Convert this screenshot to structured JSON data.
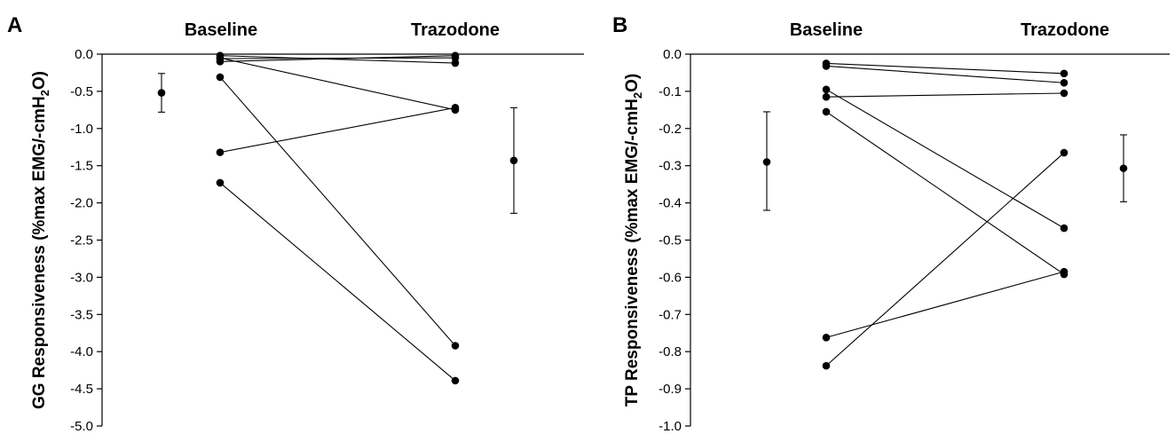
{
  "chart_data": [
    {
      "type": "scatter",
      "panel_label": "A",
      "group_labels": [
        "Baseline",
        "Trazodone"
      ],
      "ylabel": {
        "main": "GG Responsiveness (%max EMG/-cmH",
        "sub": "2",
        "end": "O)"
      },
      "ylim": [
        -5.0,
        0.0
      ],
      "yticks": [
        0.0,
        -0.5,
        -1.0,
        -1.5,
        -2.0,
        -2.5,
        -3.0,
        -3.5,
        -4.0,
        -4.5,
        -5.0
      ],
      "ytick_labels": [
        "0.0",
        "-0.5",
        "-1.0",
        "-1.5",
        "-2.0",
        "-2.5",
        "-3.0",
        "-3.5",
        "-4.0",
        "-4.5",
        "-5.0"
      ],
      "paired_values": [
        {
          "baseline": -0.02,
          "trazodone": -0.12
        },
        {
          "baseline": -0.06,
          "trazodone": -0.05
        },
        {
          "baseline": -0.1,
          "trazodone": -0.02
        },
        {
          "baseline": -0.31,
          "trazodone": -3.92
        },
        {
          "baseline": -1.32,
          "trazodone": -0.72
        },
        {
          "baseline": -1.73,
          "trazodone": -4.39
        },
        {
          "baseline": -0.05,
          "trazodone": -0.75
        }
      ],
      "summary": [
        {
          "group": "Baseline",
          "mean": -0.52,
          "error_low": -0.78,
          "error_high": -0.26
        },
        {
          "group": "Trazodone",
          "mean": -1.43,
          "error_low": -2.14,
          "error_high": -0.72
        }
      ]
    },
    {
      "type": "scatter",
      "panel_label": "B",
      "group_labels": [
        "Baseline",
        "Trazodone"
      ],
      "ylabel": {
        "main": "TP Responsiveness (%max EMG/-cmH",
        "sub": "2",
        "end": "O)"
      },
      "ylim": [
        -1.0,
        0.0
      ],
      "yticks": [
        0.0,
        -0.1,
        -0.2,
        -0.3,
        -0.4,
        -0.5,
        -0.6,
        -0.7,
        -0.8,
        -0.9,
        -1.0
      ],
      "ytick_labels": [
        "0.0",
        "-0.1",
        "-0.2",
        "-0.3",
        "-0.4",
        "-0.5",
        "-0.6",
        "-0.7",
        "-0.8",
        "-0.9",
        "-1.0"
      ],
      "paired_values": [
        {
          "baseline": -0.025,
          "trazodone": -0.052
        },
        {
          "baseline": -0.032,
          "trazodone": -0.077
        },
        {
          "baseline": -0.115,
          "trazodone": -0.105
        },
        {
          "baseline": -0.095,
          "trazodone": -0.468
        },
        {
          "baseline": -0.155,
          "trazodone": -0.592
        },
        {
          "baseline": -0.762,
          "trazodone": -0.585
        },
        {
          "baseline": -0.838,
          "trazodone": -0.265
        }
      ],
      "summary": [
        {
          "group": "Baseline",
          "mean": -0.29,
          "error_low": -0.42,
          "error_high": -0.155
        },
        {
          "group": "Trazodone",
          "mean": -0.307,
          "error_low": -0.397,
          "error_high": -0.217
        }
      ]
    }
  ]
}
